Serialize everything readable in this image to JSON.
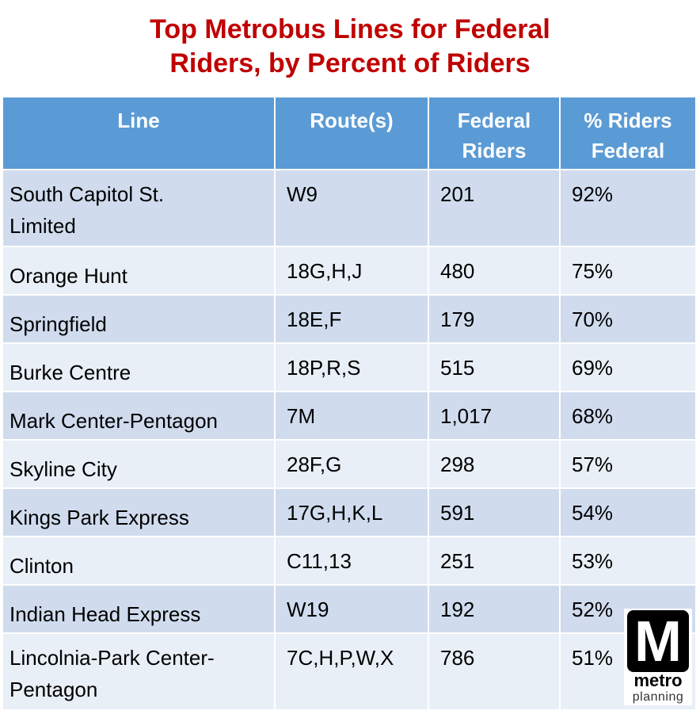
{
  "title": {
    "line1": "Top Metrobus Lines for Federal",
    "line2": "Riders, by Percent of Riders"
  },
  "table": {
    "headers": {
      "line": "Line",
      "routes": "Route(s)",
      "federal_riders": "Federal Riders",
      "pct_federal": "% Riders Federal"
    },
    "rows": [
      {
        "line": "South Capitol St. Limited",
        "routes": "W9",
        "federal_riders": "201",
        "pct": "92%"
      },
      {
        "line": "Orange Hunt",
        "routes": "18G,H,J",
        "federal_riders": "480",
        "pct": "75%"
      },
      {
        "line": "Springfield",
        "routes": "18E,F",
        "federal_riders": "179",
        "pct": "70%"
      },
      {
        "line": "Burke Centre",
        "routes": "18P,R,S",
        "federal_riders": "515",
        "pct": "69%"
      },
      {
        "line": "Mark Center-Pentagon",
        "routes": "7M",
        "federal_riders": "1,017",
        "pct": "68%"
      },
      {
        "line": "Skyline City",
        "routes": "28F,G",
        "federal_riders": "298",
        "pct": "57%"
      },
      {
        "line": "Kings Park Express",
        "routes": "17G,H,K,L",
        "federal_riders": "591",
        "pct": "54%"
      },
      {
        "line": "Clinton",
        "routes": "C11,13",
        "federal_riders": "251",
        "pct": "53%"
      },
      {
        "line": "Indian Head Express",
        "routes": "W19",
        "federal_riders": "192",
        "pct": "52%"
      },
      {
        "line": "Lincolnia-Park Center-Pentagon",
        "routes": "7C,H,P,W,X",
        "federal_riders": "786",
        "pct": "51%"
      }
    ]
  },
  "logo": {
    "letter": "M",
    "word": "metro",
    "subword": "planning"
  },
  "colors": {
    "title": "#c00000",
    "header_bg": "#5b9bd5",
    "row_dark": "#d0dcee",
    "row_light": "#e9eff7"
  }
}
